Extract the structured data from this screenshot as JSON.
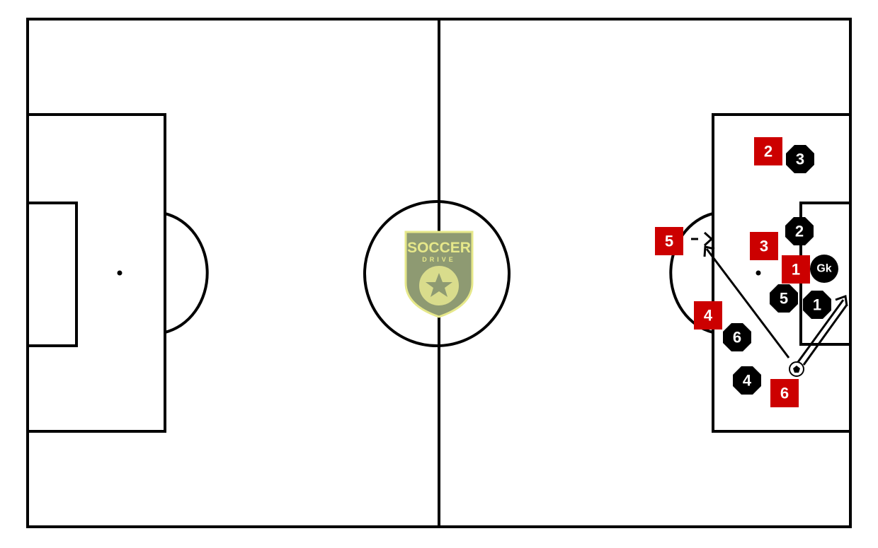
{
  "colors": {
    "pitch_background": "#ffffff",
    "pitch_lines": "#000000",
    "attacker_marker": "#cc0000",
    "defender_marker": "#000000",
    "logo_fill": "#8e9a72",
    "logo_outline": "#e6e88a"
  },
  "logo": {
    "line1": "SOCCER",
    "line2": "DRIVE"
  },
  "attackers": [
    {
      "label": "1",
      "shape": "square"
    },
    {
      "label": "2",
      "shape": "square"
    },
    {
      "label": "3",
      "shape": "square"
    },
    {
      "label": "4",
      "shape": "square"
    },
    {
      "label": "5",
      "shape": "square"
    },
    {
      "label": "6",
      "shape": "square"
    }
  ],
  "defenders": [
    {
      "label": "1",
      "shape": "octagon"
    },
    {
      "label": "2",
      "shape": "octagon"
    },
    {
      "label": "3",
      "shape": "octagon"
    },
    {
      "label": "4",
      "shape": "octagon"
    },
    {
      "label": "5",
      "shape": "octagon"
    },
    {
      "label": "6",
      "shape": "octagon"
    }
  ],
  "goalkeeper": {
    "label": "Gk",
    "shape": "circle"
  },
  "ball": {
    "icon": "soccer-ball-icon"
  },
  "arrows": [
    {
      "type": "pass",
      "from": "ball",
      "to": "attacker-5-run-end"
    },
    {
      "type": "dribble",
      "from": "ball",
      "to": "goal-line"
    },
    {
      "type": "run",
      "from": "attacker-5",
      "to": "attacker-5-run-end"
    }
  ]
}
